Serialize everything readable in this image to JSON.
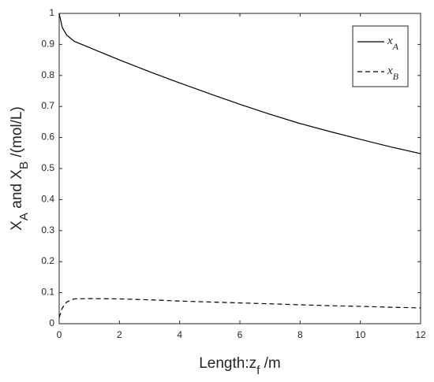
{
  "chart_data": {
    "type": "line",
    "x_label": "Length:zf /m",
    "y_label": "XA and XB /(mol/L)",
    "x": [
      0,
      0.1,
      0.25,
      0.5,
      1,
      2,
      3,
      4,
      5,
      6,
      7,
      8,
      9,
      10,
      11,
      12
    ],
    "series": [
      {
        "name": "xA",
        "color": "#000000",
        "linestyle": "solid",
        "values": [
          1,
          0.955,
          0.93,
          0.91,
          0.89,
          0.85,
          0.812,
          0.776,
          0.741,
          0.707,
          0.675,
          0.645,
          0.619,
          0.594,
          0.57,
          0.548
        ]
      },
      {
        "name": "xB",
        "color": "#000000",
        "linestyle": "dashed",
        "values": [
          0.02,
          0.05,
          0.07,
          0.08,
          0.081,
          0.08,
          0.077,
          0.073,
          0.07,
          0.067,
          0.064,
          0.061,
          0.058,
          0.056,
          0.053,
          0.051
        ]
      }
    ],
    "xlim": [
      0,
      12
    ],
    "xticks": [
      0,
      2,
      4,
      6,
      8,
      10,
      12
    ],
    "ylim": [
      0,
      1
    ],
    "yticks": [
      0,
      0.1,
      0.2,
      0.3,
      0.4,
      0.5,
      0.6,
      0.7,
      0.8,
      0.9,
      1
    ],
    "grid": false,
    "legend": "upper right"
  }
}
